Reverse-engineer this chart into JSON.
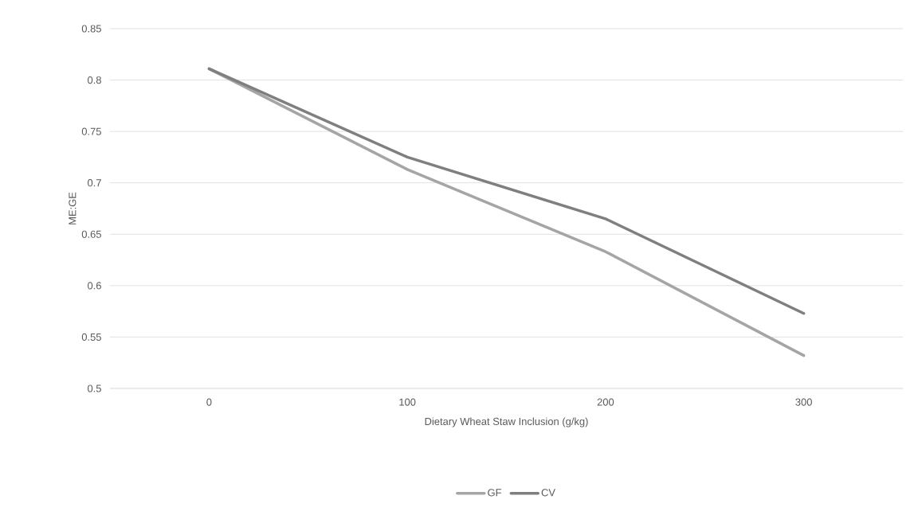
{
  "chart_data": {
    "type": "line",
    "xlabel": "Dietary Wheat Staw Inclusion (g/kg)",
    "ylabel": "ME:GE",
    "categories": [
      "0",
      "100",
      "200",
      "300"
    ],
    "series": [
      {
        "name": "GF",
        "color": "#a5a5a5",
        "values": [
          0.811,
          0.713,
          0.633,
          0.532
        ]
      },
      {
        "name": "CV",
        "color": "#7f7f7f",
        "values": [
          0.811,
          0.725,
          0.665,
          0.573
        ]
      }
    ],
    "ylim": [
      0.5,
      0.85
    ],
    "yticks": [
      0.5,
      0.55,
      0.6,
      0.65,
      0.7,
      0.75,
      0.8,
      0.85
    ],
    "grid": "y",
    "legend": "bottom",
    "marker": "none",
    "line_style": "solid"
  }
}
